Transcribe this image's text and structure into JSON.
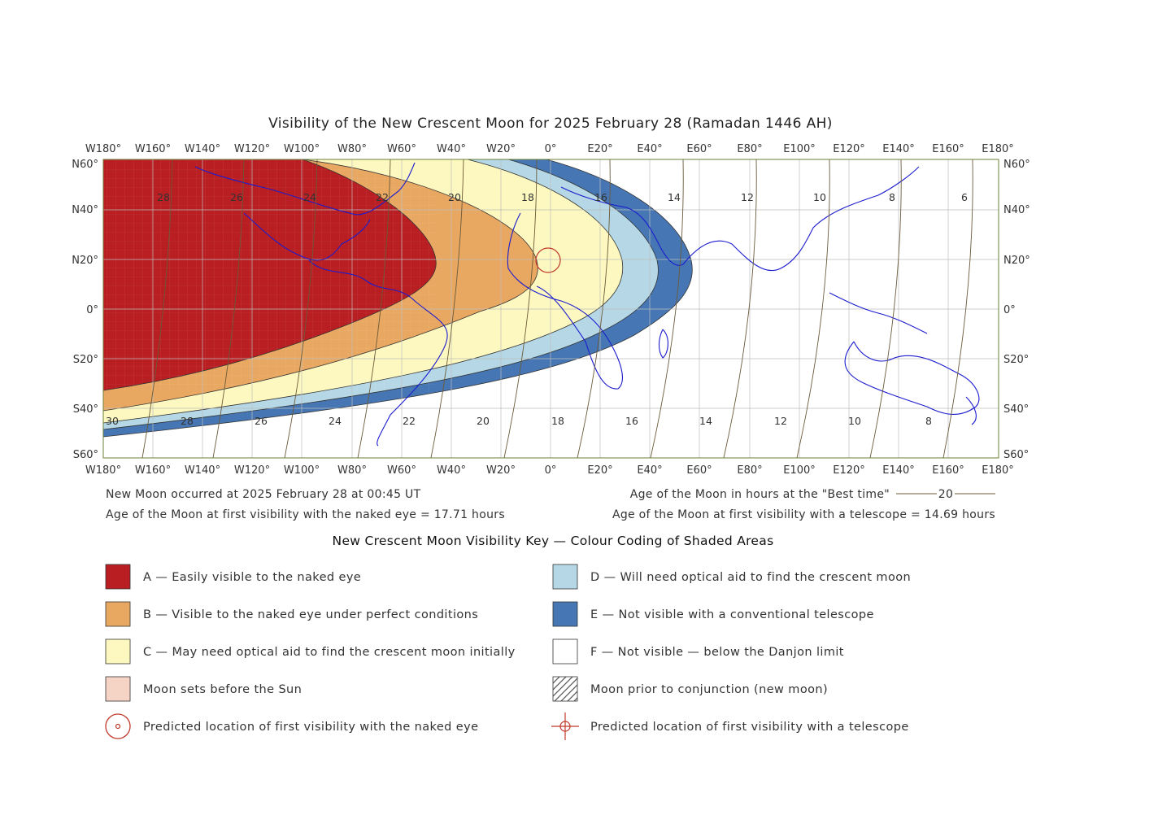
{
  "title": "Visibility of the New Crescent Moon for 2025 February 28 (Ramadan 1446 AH)",
  "longitude_labels": [
    "W180°",
    "W160°",
    "W140°",
    "W120°",
    "W100°",
    "W80°",
    "W60°",
    "W40°",
    "W20°",
    "0°",
    "E20°",
    "E40°",
    "E60°",
    "E80°",
    "E100°",
    "E120°",
    "E140°",
    "E160°",
    "E180°"
  ],
  "latitude_labels": [
    "N60°",
    "N40°",
    "N20°",
    "0°",
    "S20°",
    "S40°",
    "S60°"
  ],
  "age_contour_labels_north": [
    "28",
    "26",
    "24",
    "22",
    "20",
    "18",
    "16",
    "14",
    "12",
    "10",
    "8",
    "6"
  ],
  "age_contour_labels_south": [
    "30",
    "28",
    "26",
    "24",
    "22",
    "20",
    "18",
    "16",
    "14",
    "12",
    "10",
    "8"
  ],
  "info": {
    "new_moon": "New Moon occurred at 2025 February 28 at 00:45 UT",
    "age_naked_eye": "Age of the Moon at first visibility with the naked eye = 17.71 hours",
    "age_legend_text": "Age of the Moon in hours at the \"Best time\"",
    "age_legend_sample": "20",
    "age_telescope": "Age of the Moon at first visibility with a telescope = 14.69 hours"
  },
  "key": {
    "title": "New Crescent Moon Visibility Key — Colour Coding of Shaded Areas",
    "items": [
      {
        "label": "A — Easily visible to the naked eye",
        "color": "#b81e22"
      },
      {
        "label": "B — Visible to the naked eye under perfect conditions",
        "color": "#e9a862"
      },
      {
        "label": "C — May need optical aid to find the crescent moon initially",
        "color": "#fdf8bf"
      },
      {
        "label": "Moon sets before the Sun",
        "color": "#f5d3c5"
      },
      {
        "label": "Predicted location of first visibility with the naked eye",
        "color": "#c0392b"
      },
      {
        "label": "D — Will need optical aid to find the crescent moon",
        "color": "#b6d8e6"
      },
      {
        "label": "E — Not visible with a conventional telescope",
        "color": "#4677b4"
      },
      {
        "label": "F — Not visible — below the Danjon limit",
        "color": "#ffffff"
      },
      {
        "label": "Moon prior to conjunction (new moon)",
        "color": "#555555"
      },
      {
        "label": "Predicted location of first visibility with a telescope",
        "color": "#c0392b"
      }
    ]
  }
}
